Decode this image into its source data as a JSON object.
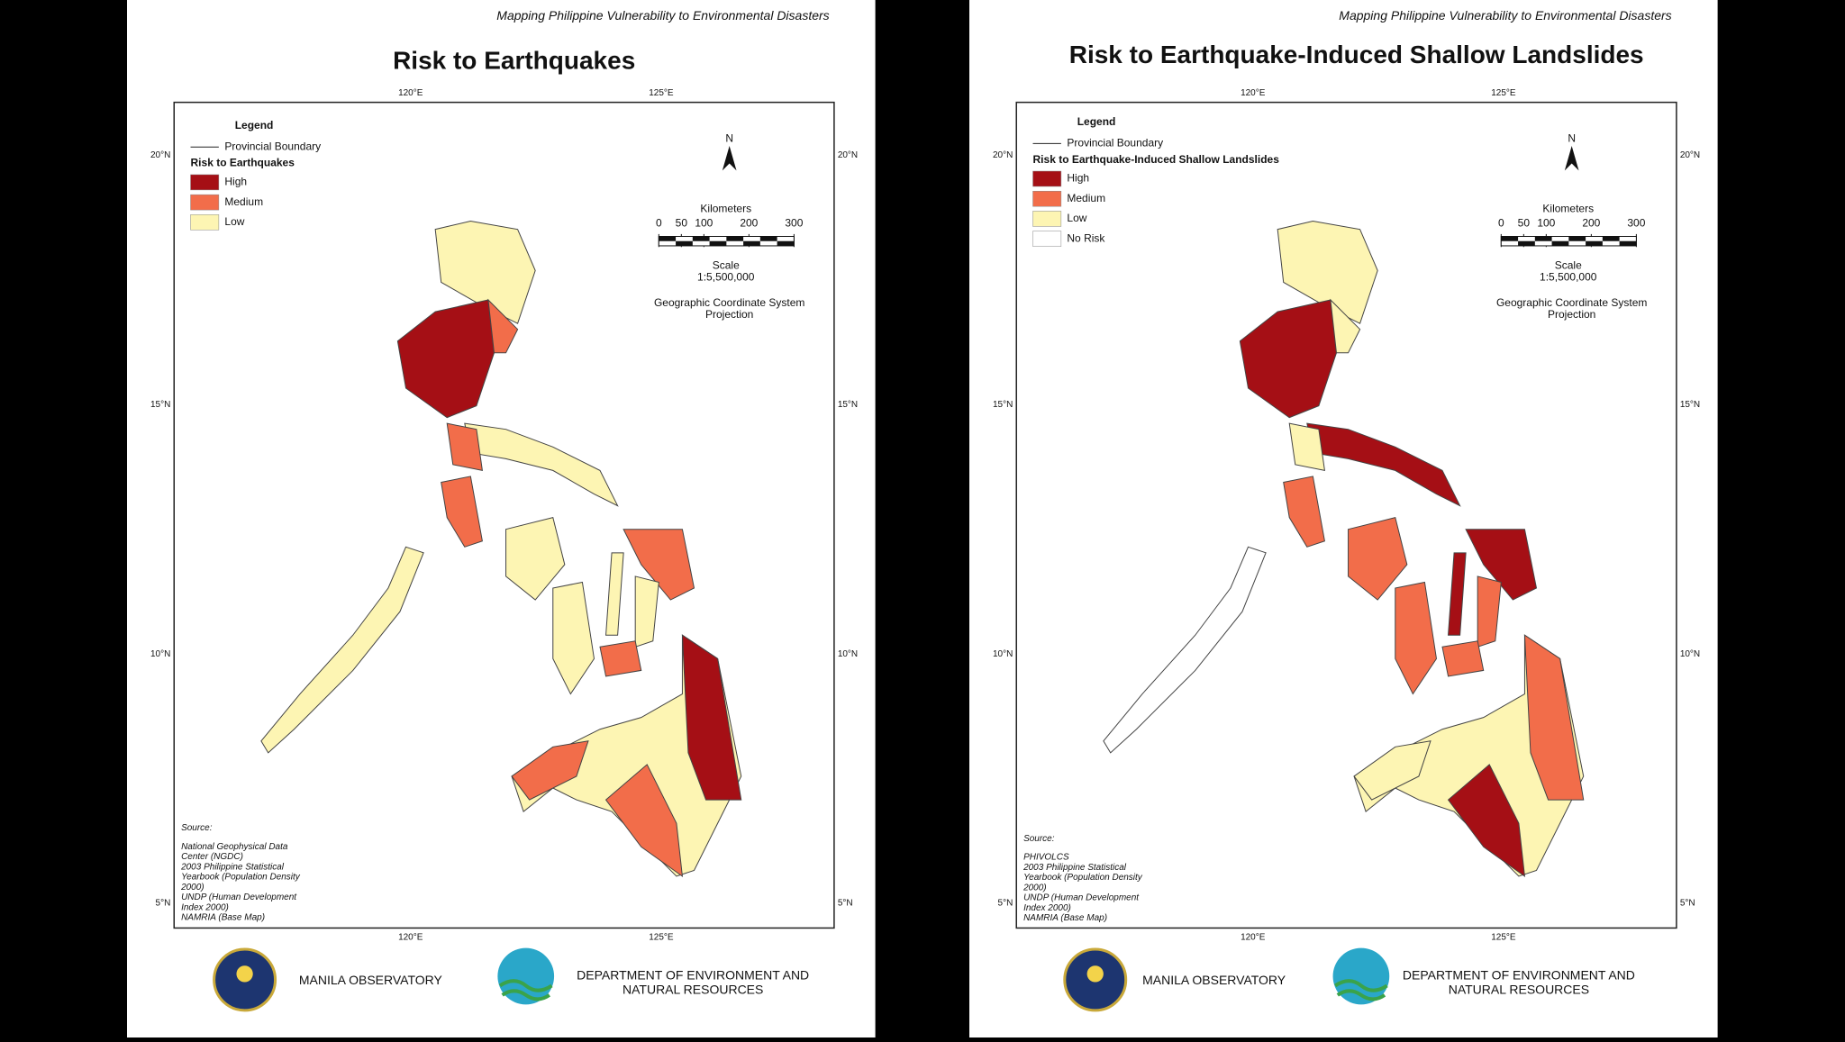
{
  "panels": [
    {
      "header": "Mapping Philippine Vulnerability to Environmental Disasters",
      "title": "Risk to Earthquakes",
      "longitude_labels": [
        "120°E",
        "125°E"
      ],
      "latitude_labels": [
        "20°N",
        "15°N",
        "10°N",
        "5°N"
      ],
      "legend": {
        "title": "Legend",
        "boundary": "Provincial Boundary",
        "heading": "Risk to Earthquakes",
        "items": [
          "High",
          "Medium",
          "Low"
        ],
        "colors": [
          "#a50f15",
          "#f26d4a",
          "#fdf5b3"
        ]
      },
      "north": "N",
      "scale": {
        "unit": "Kilometers",
        "ticks": [
          0,
          50,
          100,
          200,
          300
        ],
        "label": "Scale",
        "ratio": "1:5,500,000"
      },
      "projection": [
        "Geographic Coordinate System",
        "Projection"
      ],
      "source": {
        "title": "Source:",
        "lines": [
          "National Geophysical Data",
          "Center (NGDC)",
          "2003 Philippine Statistical",
          "Yearbook (Population Density",
          "2000)",
          "UNDP (Human Development",
          "Index 2000)",
          "NAMRIA (Base Map)"
        ]
      },
      "footer": {
        "org1": "MANILA OBSERVATORY",
        "org2": [
          "DEPARTMENT OF ENVIRONMENT AND",
          "NATURAL RESOURCES"
        ]
      }
    },
    {
      "header": "Mapping Philippine Vulnerability to Environmental Disasters",
      "title": "Risk to Earthquake-Induced Shallow Landslides",
      "longitude_labels": [
        "120°E",
        "125°E"
      ],
      "latitude_labels": [
        "20°N",
        "15°N",
        "10°N",
        "5°N"
      ],
      "legend": {
        "title": "Legend",
        "boundary": "Provincial Boundary",
        "heading": "Risk to Earthquake-Induced Shallow Landslides",
        "items": [
          "High",
          "Medium",
          "Low",
          "No Risk"
        ],
        "colors": [
          "#a50f15",
          "#f26d4a",
          "#fdf5b3",
          "#ffffff"
        ]
      },
      "north": "N",
      "scale": {
        "unit": "Kilometers",
        "ticks": [
          0,
          50,
          100,
          200,
          300
        ],
        "label": "Scale",
        "ratio": "1:5,500,000"
      },
      "projection": [
        "Geographic Coordinate System",
        "Projection"
      ],
      "source": {
        "title": "Source:",
        "lines": [
          "PHIVOLCS",
          "2003 Philippine Statistical",
          "Yearbook (Population Density",
          "2000)",
          "UNDP (Human Development",
          "Index 2000)",
          "NAMRIA (Base Map)"
        ]
      },
      "footer": {
        "org1": "MANILA OBSERVATORY",
        "org2": [
          "DEPARTMENT OF ENVIRONMENT AND",
          "NATURAL RESOURCES"
        ]
      }
    }
  ]
}
